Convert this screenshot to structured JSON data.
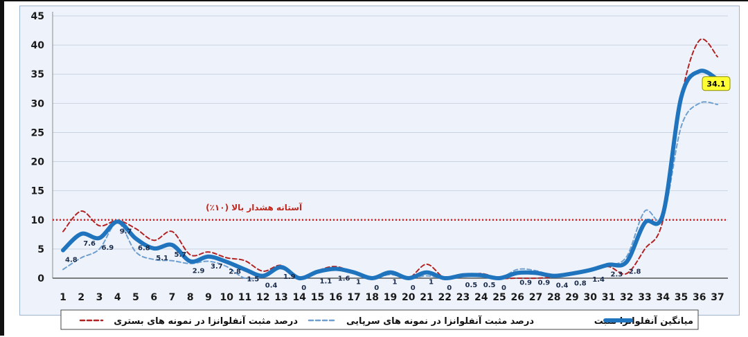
{
  "chart_data": {
    "type": "line",
    "x": [
      1,
      2,
      3,
      4,
      5,
      6,
      7,
      8,
      9,
      10,
      11,
      12,
      13,
      14,
      15,
      16,
      17,
      18,
      19,
      20,
      21,
      22,
      23,
      24,
      25,
      26,
      27,
      28,
      29,
      30,
      31,
      32,
      33,
      34,
      35,
      36,
      37
    ],
    "ylim": [
      0,
      45
    ],
    "yticks": [
      0,
      5,
      10,
      15,
      20,
      25,
      30,
      35,
      40,
      45
    ],
    "grid": "y-major",
    "legend_position": "bottom",
    "threshold": {
      "value": 10,
      "label": "آستانه هشدار بالا (۱۰٪)",
      "color": "#d42020"
    },
    "series": [
      {
        "name": "میانگین آنفلوانزا مثبت",
        "color": "#1f74bd",
        "style": "solid-thick",
        "values": [
          4.8,
          7.6,
          6.9,
          9.7,
          6.8,
          5.1,
          5.7,
          2.9,
          3.7,
          2.8,
          1.5,
          0.4,
          1.9,
          0,
          1.1,
          1.6,
          1,
          0,
          1,
          0,
          1,
          0,
          0.5,
          0.5,
          0,
          0.9,
          0.9,
          0.4,
          0.8,
          1.4,
          2.3,
          2.8,
          9.5,
          11,
          31,
          35.5,
          34.1
        ]
      },
      {
        "name": "درصد مثبت آنفلوانزا در نمونه های سرپایی",
        "color": "#6f9fcf",
        "style": "dashed",
        "values": [
          1.5,
          3.5,
          5,
          9.5,
          4.5,
          3.2,
          3,
          2.5,
          2.9,
          2,
          0,
          0.3,
          1.6,
          0,
          1.2,
          1.7,
          0.8,
          0,
          0.6,
          0,
          0.4,
          0,
          0.6,
          0.4,
          0,
          1.5,
          1.3,
          0.4,
          0.6,
          1.4,
          2.2,
          3.7,
          11.5,
          10.5,
          26,
          30,
          29.8
        ]
      },
      {
        "name": "درصد مثبت آنفلوانزا در نمونه های بستری",
        "color": "#b22222",
        "style": "dashed",
        "values": [
          8,
          11.5,
          9,
          9.9,
          8.5,
          6.5,
          8,
          4,
          4.5,
          3.5,
          3,
          1.2,
          2.2,
          0,
          1.3,
          2,
          0.9,
          0,
          0.9,
          0,
          2.4,
          0,
          0.3,
          0.8,
          0,
          0,
          0,
          0.2,
          0.8,
          1.3,
          2,
          0.8,
          5,
          10,
          31,
          40.8,
          38
        ]
      }
    ],
    "data_labels": [
      "4.8",
      "7.6",
      "6.9",
      "9.7",
      "6.8",
      "5.1",
      "5.7",
      "2.9",
      "3.7",
      "2.8",
      "1.5",
      "0.4",
      "1.9",
      "0",
      "1.1",
      "1.6",
      "1",
      "0",
      "1",
      "0",
      "1",
      "0",
      "0.5",
      "0.5",
      "0",
      "0.9",
      "0.9",
      "0.4",
      "0.8",
      "1.4",
      "2.3",
      "2.8"
    ],
    "callout": {
      "x": 37,
      "label": "34.1",
      "color": "#ffff33"
    }
  }
}
